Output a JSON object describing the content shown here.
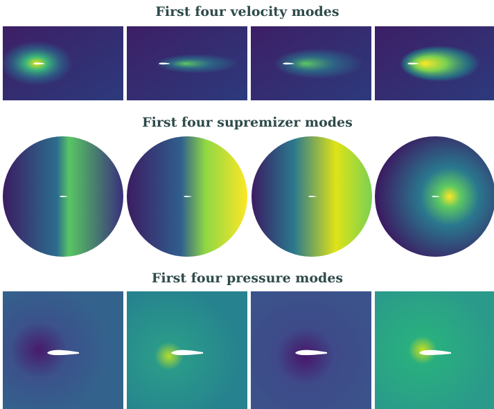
{
  "rows": [
    {
      "title": "First four velocity modes"
    },
    {
      "title": "First four supremizer modes"
    },
    {
      "title": "First four pressure modes"
    }
  ]
}
